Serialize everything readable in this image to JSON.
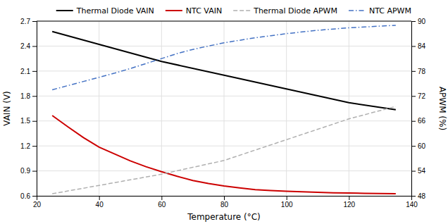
{
  "chart_data": {
    "type": "line",
    "xlabel": "Temperature (°C)",
    "ylabel": "VAIN (V)",
    "y2label": "APWM (%)",
    "xlim": [
      20,
      140
    ],
    "xticks": [
      20,
      40,
      60,
      80,
      100,
      120,
      140
    ],
    "ylim": [
      0.6,
      2.7
    ],
    "yticks": [
      0.6,
      0.9,
      1.2,
      1.5,
      1.8,
      2.1,
      2.4,
      2.7
    ],
    "y2lim": [
      48,
      90
    ],
    "y2ticks": [
      48,
      54,
      60,
      66,
      72,
      78,
      84,
      90
    ],
    "grid": true,
    "legend": "upper right",
    "series": [
      {
        "name": "Thermal Diode VAIN",
        "color": "#000000",
        "line_style": "solid",
        "axis": "y",
        "x": [
          25,
          40,
          60,
          80,
          100,
          120,
          135
        ],
        "values": [
          2.575,
          2.42,
          2.215,
          2.05,
          1.885,
          1.72,
          1.635
        ]
      },
      {
        "name": "NTC VAIN",
        "color": "#cc0000",
        "line_style": "solid",
        "axis": "y",
        "x": [
          25,
          30,
          35,
          40,
          50,
          55,
          60,
          65,
          70,
          75,
          80,
          85,
          90,
          95,
          100,
          105,
          110,
          115,
          120,
          125,
          130,
          135
        ],
        "values": [
          1.565,
          1.43,
          1.3,
          1.185,
          1.02,
          0.95,
          0.89,
          0.835,
          0.785,
          0.748,
          0.718,
          0.695,
          0.675,
          0.663,
          0.655,
          0.648,
          0.642,
          0.637,
          0.633,
          0.63,
          0.627,
          0.625
        ]
      },
      {
        "name": "Thermal Diode APWM",
        "color": "#b0b0b0",
        "line_style": "dashed",
        "axis": "y2",
        "x": [
          25,
          40,
          60,
          80,
          100,
          110,
          120,
          130,
          135
        ],
        "values": [
          48.5,
          50.5,
          53.2,
          56.5,
          61.5,
          64.0,
          66.5,
          68.5,
          69.5
        ]
      },
      {
        "name": "NTC APWM",
        "color": "#4472c4",
        "line_style": "dashdot",
        "axis": "y2",
        "x": [
          25,
          30,
          35,
          40,
          45,
          50,
          55,
          60,
          65,
          70,
          75,
          80,
          85,
          90,
          95,
          100,
          105,
          110,
          115,
          120,
          125,
          130,
          135
        ],
        "values": [
          73.5,
          74.5,
          75.5,
          76.5,
          77.5,
          78.6,
          79.8,
          81.0,
          82.2,
          83.2,
          84.0,
          84.8,
          85.4,
          86.0,
          86.5,
          87.0,
          87.4,
          87.8,
          88.1,
          88.4,
          88.6,
          88.8,
          89.0
        ]
      }
    ]
  }
}
